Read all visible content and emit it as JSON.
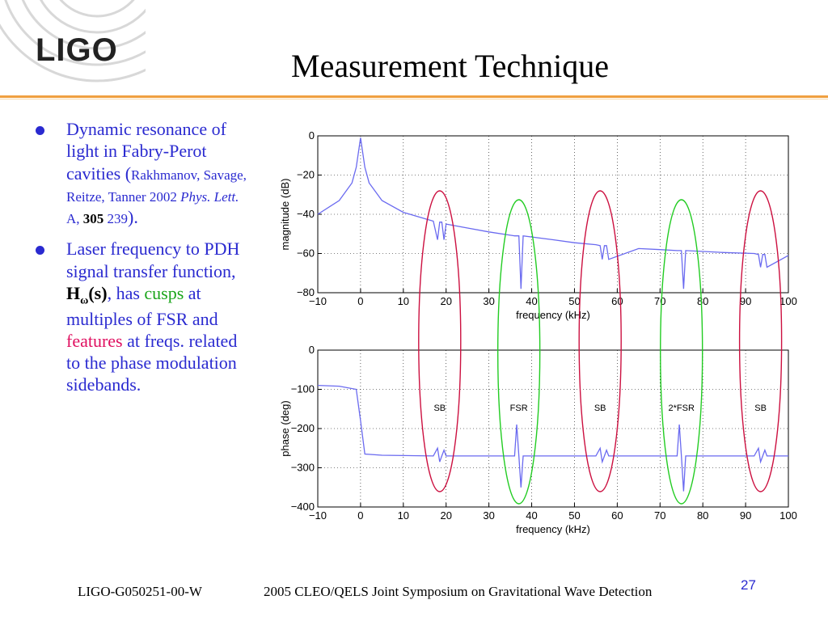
{
  "logo": {
    "text": "LIGO"
  },
  "slide": {
    "title": "Measurement Technique",
    "page": "27"
  },
  "bullets": [
    {
      "text1": "Dynamic resonance of light in Fabry-Perot cavities (",
      "ref1": "Rakhmanov, Savage, Reitze, Tanner 2002 ",
      "journal": "Phys. Lett.",
      "ref2": " A, ",
      "volume": "305",
      "ref3": " 239",
      "end": ")."
    },
    {
      "text1": "Laser frequency to PDH signal transfer function, ",
      "hfunc": "H",
      "hsub": "ω",
      "hargs": "(s)",
      "text2": ", has ",
      "cusps": "cusps",
      "text3": " at multiples of FSR and ",
      "features": "features",
      "text4": " at freqs. related to the phase modulation sidebands."
    }
  ],
  "footer": {
    "doc_id": "LIGO-G050251-00-W",
    "event": "2005 CLEO/QELS Joint Symposium on Gravitational Wave Detection"
  },
  "colors": {
    "bullet_text": "#2a2ad0",
    "trace": "#6a6af0",
    "red_ellipse": "#cc1040",
    "green_ellipse": "#22cc22"
  },
  "chart_data": [
    {
      "type": "line",
      "xlabel": "frequency (kHz)",
      "ylabel": "magnitude (dB)",
      "xlim": [
        -10,
        100
      ],
      "ylim": [
        -80,
        0
      ],
      "xticks": [
        -10,
        0,
        10,
        20,
        30,
        40,
        50,
        60,
        70,
        80,
        90,
        100
      ],
      "yticks": [
        0,
        -20,
        -40,
        -60,
        -80
      ],
      "grid": true,
      "x": [
        -10,
        -5,
        -2,
        -1,
        0,
        1,
        2,
        5,
        10,
        17,
        18,
        18.5,
        19,
        19.5,
        20,
        25,
        30,
        36,
        37,
        37.5,
        38,
        45,
        50,
        55,
        56,
        56.5,
        57,
        57.5,
        58,
        65,
        70,
        74,
        75,
        75.5,
        76,
        85,
        92,
        93,
        93.5,
        94,
        94.5,
        95,
        100
      ],
      "y": [
        -40,
        -33,
        -24,
        -16,
        -1,
        -16,
        -24,
        -33,
        -39,
        -43.5,
        -53,
        -44,
        -44,
        -53,
        -45,
        -47,
        -49,
        -51,
        -51,
        -78,
        -51,
        -53,
        -54.5,
        -55.5,
        -56,
        -63,
        -56,
        -56,
        -63,
        -57.5,
        -58,
        -58.5,
        -58.5,
        -78,
        -58.5,
        -59.5,
        -60,
        -60.5,
        -67,
        -60.5,
        -60.5,
        -67,
        -61
      ]
    },
    {
      "type": "line",
      "xlabel": "frequency (kHz)",
      "ylabel": "phase (deg)",
      "xlim": [
        -10,
        100
      ],
      "ylim": [
        -400,
        0
      ],
      "xticks": [
        -10,
        0,
        10,
        20,
        30,
        40,
        50,
        60,
        70,
        80,
        90,
        100
      ],
      "yticks": [
        0,
        -100,
        -200,
        -300,
        -400
      ],
      "grid": true,
      "x": [
        -10,
        -5,
        -1,
        0,
        1,
        5,
        17,
        18,
        18.5,
        19,
        19.5,
        20,
        36,
        36.5,
        37,
        37.5,
        38,
        55,
        56,
        56.5,
        57,
        57.5,
        58,
        74,
        74.5,
        75,
        75.5,
        76,
        92,
        93,
        93.5,
        94,
        94.5,
        95,
        100
      ],
      "y": [
        -90,
        -92,
        -100,
        -180,
        -265,
        -268,
        -270,
        -250,
        -285,
        -270,
        -255,
        -270,
        -270,
        -190,
        -270,
        -350,
        -270,
        -270,
        -250,
        -285,
        -270,
        -255,
        -270,
        -270,
        -190,
        -270,
        -360,
        -270,
        -270,
        -250,
        -285,
        -270,
        -255,
        -270,
        -270
      ]
    }
  ],
  "annotations": [
    {
      "label": "SB",
      "x": 18.5,
      "color": "red"
    },
    {
      "label": "FSR",
      "x": 37,
      "color": "green"
    },
    {
      "label": "SB",
      "x": 56,
      "color": "red"
    },
    {
      "label": "2*FSR",
      "x": 75,
      "color": "green"
    },
    {
      "label": "SB",
      "x": 93.5,
      "color": "red"
    }
  ]
}
